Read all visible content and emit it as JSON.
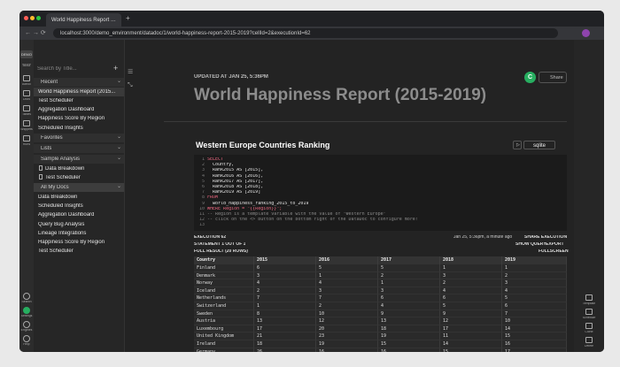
{
  "browser": {
    "tab_title": "World Happiness Report (2015-2019)",
    "url": "localhost:3000/demo_environment/datadoc/1/world-happiness-report-2015-2019?cellId=2&executionId=62"
  },
  "rail": {
    "workspaces": [
      "DEMO",
      "TEST"
    ],
    "top": [
      "Adhoc",
      "Docs",
      "Tables",
      "Snippets",
      "Runs"
    ],
    "bottom": [
      "Search",
      "Settings",
      "Engines",
      "Help"
    ]
  },
  "sidebar": {
    "search_placeholder": "Search by Title...",
    "sections": [
      {
        "title": "Recent",
        "items": [
          "World Happiness Report (2015...",
          "Test Scheduler",
          "Aggregation Dashboard",
          "Happiness Score By Region",
          "Scheduled Insights"
        ]
      },
      {
        "title": "Favorites",
        "items": []
      },
      {
        "title": "Lists",
        "items": []
      },
      {
        "title": "Sample Analysis",
        "items": [
          "Data Breakdown",
          "Test Scheduler"
        ]
      },
      {
        "title": "All My Docs",
        "items": [
          "Data Breakdown",
          "Scheduled Insights",
          "Aggregation Dashboard",
          "Query Bug Analysis",
          "Lineage Integrations",
          "Happiness Score By Region",
          "Test Scheduler"
        ]
      }
    ]
  },
  "doc": {
    "updated": "UPDATED AT JAN 25, 5:36PM",
    "avatar": "C",
    "share": "Share",
    "title": "World Happiness Report (2015-2019)",
    "cell": {
      "title": "Western Europe Countries Ranking",
      "engine": "sqlite",
      "code": [
        {
          "n": 1,
          "text": "SELECT"
        },
        {
          "n": 2,
          "text": "  Country,"
        },
        {
          "n": 3,
          "text": "  Rank2015 AS [2015],"
        },
        {
          "n": 4,
          "text": "  Rank2016 AS [2016],"
        },
        {
          "n": 5,
          "text": "  Rank2017 AS [2017],"
        },
        {
          "n": 6,
          "text": "  Rank2018 AS [2018],"
        },
        {
          "n": 7,
          "text": "  Rank2019 AS [2019]"
        },
        {
          "n": 8,
          "text": "FROM"
        },
        {
          "n": 9,
          "text": "  world_happiness_ranking_2015_to_2019"
        },
        {
          "n": 10,
          "text": "WHERE Region = \"{{Region}}\";"
        },
        {
          "n": 11,
          "text": "-- Region is a template variable with the value of \"Western Europe\""
        },
        {
          "n": 12,
          "text": "-- click on the <> button on the bottom right of the DataDoc to configure more!"
        },
        {
          "n": 13,
          "text": ""
        }
      ],
      "execution": "EXECUTION 62",
      "time": "Jan 25, 5:36pm, a minute ago",
      "share_execution": "SHARE EXECUTION",
      "statement": "STATEMENT 1 OUT OF 1",
      "show_query": "SHOW QUERY",
      "export": "EXPORT",
      "result": "FULL RESULT (20 ROWS)",
      "fullscreen": "FULLSCREEN",
      "table": {
        "columns": [
          "Country",
          "2015",
          "2016",
          "2017",
          "2018",
          "2019"
        ],
        "rows": [
          [
            "Finland",
            6,
            5,
            5,
            1,
            1
          ],
          [
            "Denmark",
            3,
            1,
            2,
            3,
            2
          ],
          [
            "Norway",
            4,
            4,
            1,
            2,
            3
          ],
          [
            "Iceland",
            2,
            3,
            3,
            4,
            4
          ],
          [
            "Netherlands",
            7,
            7,
            6,
            6,
            5
          ],
          [
            "Switzerland",
            1,
            2,
            4,
            5,
            6
          ],
          [
            "Sweden",
            8,
            10,
            9,
            9,
            7
          ],
          [
            "Austria",
            13,
            12,
            13,
            12,
            10
          ],
          [
            "Luxembourg",
            17,
            20,
            18,
            17,
            14
          ],
          [
            "United Kingdom",
            21,
            23,
            19,
            11,
            15
          ],
          [
            "Ireland",
            18,
            19,
            15,
            14,
            16
          ],
          [
            "Germany",
            26,
            16,
            16,
            15,
            17
          ]
        ]
      }
    }
  },
  "right_rail": [
    "Template",
    "Schedule",
    "Clone",
    "Delete"
  ]
}
